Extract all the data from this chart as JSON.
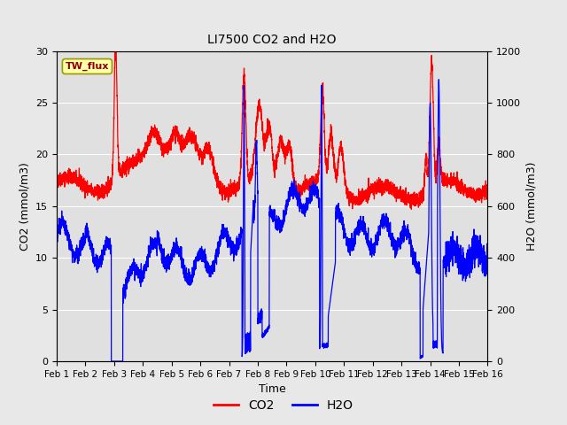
{
  "title": "LI7500 CO2 and H2O",
  "xlabel": "Time",
  "ylabel_left": "CO2 (mmol/m3)",
  "ylabel_right": "H2O (mmol/m3)",
  "annotation": "TW_flux",
  "co2_ylim": [
    0,
    30
  ],
  "h2o_ylim": [
    0,
    1200
  ],
  "co2_color": "#ff0000",
  "h2o_color": "#0000ff",
  "fig_facecolor": "#e8e8e8",
  "axes_facecolor": "#e0e0e0",
  "legend_co2": "CO2",
  "legend_h2o": "H2O",
  "x_tick_labels": [
    "Feb 1",
    "Feb 2",
    "Feb 3",
    "Feb 4",
    "Feb 5",
    "Feb 6",
    "Feb 7",
    "Feb 8",
    "Feb 9",
    "Feb 10",
    "Feb 11",
    "Feb 12",
    "Feb 13",
    "Feb 14",
    "Feb 15",
    "Feb 16"
  ],
  "n_days": 16,
  "seed": 42
}
